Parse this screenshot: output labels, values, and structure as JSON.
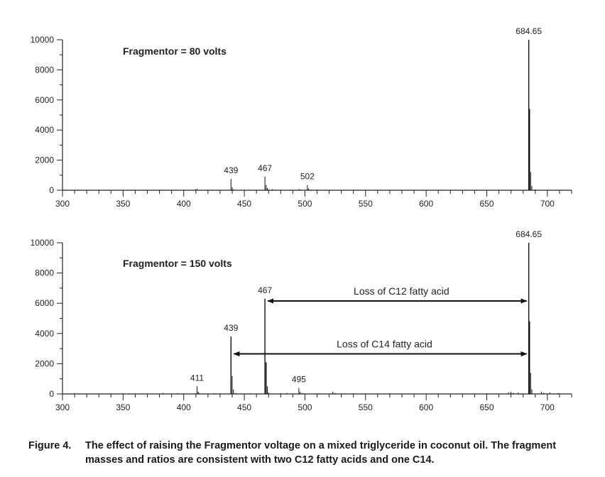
{
  "chart_data": [
    {
      "type": "bar",
      "annotation": "Fragmentor = 80 volts",
      "xlim": [
        300,
        720
      ],
      "ylim": [
        0,
        10000
      ],
      "xticks": [
        300,
        350,
        400,
        450,
        500,
        550,
        600,
        650,
        700
      ],
      "yticks": [
        0,
        2000,
        4000,
        6000,
        8000,
        10000
      ],
      "peak_labels": [
        {
          "x": 439,
          "y": 750,
          "label": "439"
        },
        {
          "x": 467,
          "y": 900,
          "label": "467"
        },
        {
          "x": 502,
          "y": 350,
          "label": "502"
        },
        {
          "x": 684.65,
          "y": 10000,
          "label": "684.65"
        }
      ],
      "points": [
        {
          "x": 410,
          "y": 60
        },
        {
          "x": 411,
          "y": 80
        },
        {
          "x": 424,
          "y": 40
        },
        {
          "x": 439,
          "y": 750
        },
        {
          "x": 440,
          "y": 200
        },
        {
          "x": 441,
          "y": 50
        },
        {
          "x": 467,
          "y": 900
        },
        {
          "x": 468,
          "y": 350
        },
        {
          "x": 469,
          "y": 150
        },
        {
          "x": 470,
          "y": 40
        },
        {
          "x": 473,
          "y": 70
        },
        {
          "x": 476,
          "y": 40
        },
        {
          "x": 480,
          "y": 30
        },
        {
          "x": 488,
          "y": 40
        },
        {
          "x": 495,
          "y": 80
        },
        {
          "x": 497,
          "y": 40
        },
        {
          "x": 502,
          "y": 350
        },
        {
          "x": 503,
          "y": 120
        },
        {
          "x": 505,
          "y": 40
        },
        {
          "x": 684.65,
          "y": 10000
        },
        {
          "x": 685.3,
          "y": 5400
        },
        {
          "x": 686.2,
          "y": 1200
        },
        {
          "x": 687.2,
          "y": 280
        },
        {
          "x": 690,
          "y": 50
        }
      ]
    },
    {
      "type": "bar",
      "annotation": "Fragmentor = 150 volts",
      "xlim": [
        300,
        720
      ],
      "ylim": [
        0,
        10000
      ],
      "xticks": [
        300,
        350,
        400,
        450,
        500,
        550,
        600,
        650,
        700
      ],
      "yticks": [
        0,
        2000,
        4000,
        6000,
        8000,
        10000
      ],
      "peak_labels": [
        {
          "x": 411,
          "y": 500,
          "label": "411"
        },
        {
          "x": 439,
          "y": 3800,
          "label": "439"
        },
        {
          "x": 467,
          "y": 6300,
          "label": "467"
        },
        {
          "x": 495,
          "y": 400,
          "label": "495"
        },
        {
          "x": 684.65,
          "y": 10000,
          "label": "684.65"
        }
      ],
      "arrows": [
        {
          "label": "Loss of C12 fatty acid",
          "from": 467,
          "to": 684.65,
          "y": 6150
        },
        {
          "label": "Loss of C14 fatty acid",
          "from": 439,
          "to": 684.65,
          "y": 2650
        }
      ],
      "points": [
        {
          "x": 304,
          "y": 30
        },
        {
          "x": 310,
          "y": 60
        },
        {
          "x": 313,
          "y": 40
        },
        {
          "x": 330,
          "y": 30
        },
        {
          "x": 355,
          "y": 40
        },
        {
          "x": 383,
          "y": 60
        },
        {
          "x": 395,
          "y": 50
        },
        {
          "x": 411,
          "y": 500
        },
        {
          "x": 412,
          "y": 150
        },
        {
          "x": 413,
          "y": 60
        },
        {
          "x": 425,
          "y": 50
        },
        {
          "x": 430,
          "y": 40
        },
        {
          "x": 439,
          "y": 3800
        },
        {
          "x": 440,
          "y": 1200
        },
        {
          "x": 441,
          "y": 300
        },
        {
          "x": 443,
          "y": 60
        },
        {
          "x": 455,
          "y": 40
        },
        {
          "x": 467,
          "y": 6300
        },
        {
          "x": 468,
          "y": 2100
        },
        {
          "x": 469,
          "y": 500
        },
        {
          "x": 470,
          "y": 100
        },
        {
          "x": 480,
          "y": 40
        },
        {
          "x": 485,
          "y": 60
        },
        {
          "x": 495,
          "y": 400
        },
        {
          "x": 496,
          "y": 150
        },
        {
          "x": 498,
          "y": 60
        },
        {
          "x": 512,
          "y": 50
        },
        {
          "x": 523,
          "y": 150
        },
        {
          "x": 525,
          "y": 60
        },
        {
          "x": 540,
          "y": 40
        },
        {
          "x": 570,
          "y": 40
        },
        {
          "x": 610,
          "y": 30
        },
        {
          "x": 650,
          "y": 40
        },
        {
          "x": 668,
          "y": 100
        },
        {
          "x": 670,
          "y": 150
        },
        {
          "x": 672,
          "y": 80
        },
        {
          "x": 676,
          "y": 100
        },
        {
          "x": 684.65,
          "y": 10000
        },
        {
          "x": 685.3,
          "y": 4800
        },
        {
          "x": 686.2,
          "y": 1400
        },
        {
          "x": 687.2,
          "y": 300
        },
        {
          "x": 695,
          "y": 150
        },
        {
          "x": 697,
          "y": 80
        },
        {
          "x": 702,
          "y": 100
        },
        {
          "x": 709,
          "y": 60
        }
      ]
    }
  ],
  "caption": {
    "label": "Figure 4.",
    "text": "The effect of raising the Fragmentor voltage on a mixed triglyceride in coconut oil. The fragment masses and ratios are consistent with two C12 fatty acids and one C14."
  }
}
